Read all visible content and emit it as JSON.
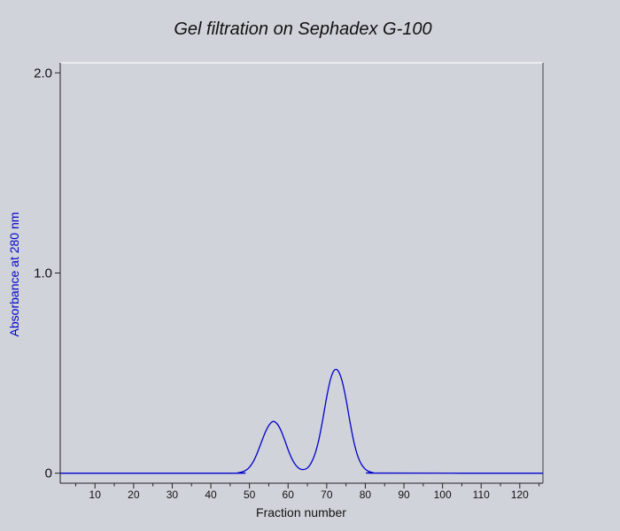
{
  "chart_data": {
    "type": "line",
    "title": "Gel filtration on Sephadex G-100",
    "xlabel": "Fraction number",
    "ylabel": "Absorbance at 280 nm",
    "xlim": [
      1,
      126
    ],
    "ylim": [
      -0.05,
      2.05
    ],
    "x_ticks": [
      10,
      20,
      30,
      40,
      50,
      60,
      70,
      80,
      90,
      100,
      110,
      120
    ],
    "x_minor_ticks": [
      5,
      15,
      25,
      35,
      45,
      55,
      65,
      75,
      85,
      95,
      105,
      115,
      125
    ],
    "y_ticks": [
      {
        "value": 0,
        "label": "0"
      },
      {
        "value": 1.0,
        "label": "1.0"
      },
      {
        "value": 2.0,
        "label": "2.0"
      }
    ],
    "grid": false,
    "series": [
      {
        "color": "#0000cc",
        "x": [
          1,
          45,
          47,
          48,
          49,
          50,
          51,
          52,
          53,
          54,
          55,
          56,
          57,
          58,
          59,
          60,
          61,
          62,
          63,
          64,
          65,
          66,
          67,
          68,
          69,
          70,
          71,
          72,
          73,
          74,
          75,
          76,
          77,
          78,
          79,
          80,
          81,
          82,
          84,
          126
        ],
        "y": [
          0,
          0,
          0.002,
          0.006,
          0.014,
          0.03,
          0.058,
          0.1,
          0.15,
          0.2,
          0.238,
          0.258,
          0.25,
          0.22,
          0.172,
          0.118,
          0.072,
          0.04,
          0.022,
          0.018,
          0.026,
          0.052,
          0.098,
          0.17,
          0.27,
          0.38,
          0.47,
          0.515,
          0.51,
          0.46,
          0.37,
          0.26,
          0.16,
          0.088,
          0.044,
          0.02,
          0.008,
          0.003,
          0.0005,
          0
        ]
      }
    ]
  },
  "colors": {
    "background": "#d0d3da",
    "axis": "#222222",
    "frame_highlight": "#f4f5f8",
    "frame_shadow": "#6e7178",
    "series": "#0000cc",
    "ylabel": "#0000cc"
  }
}
